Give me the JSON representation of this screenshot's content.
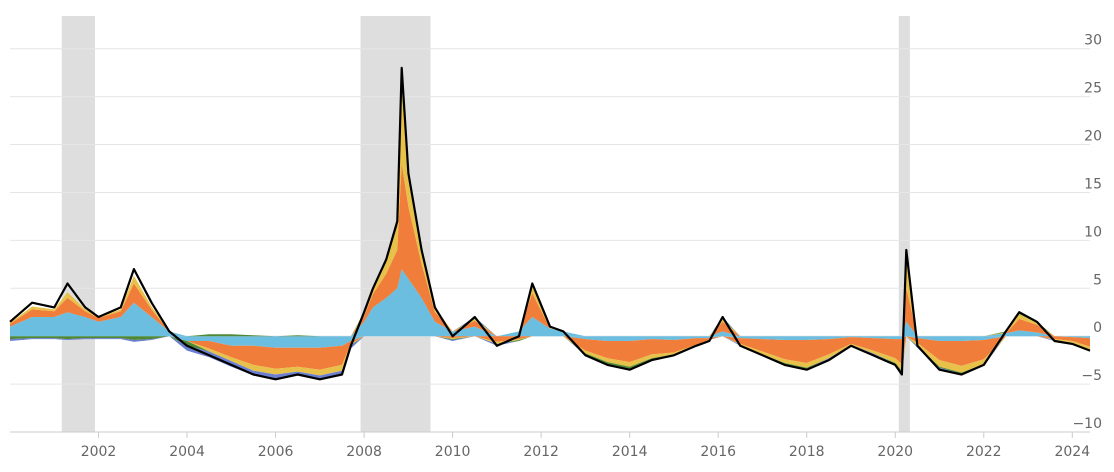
{
  "chart_data": {
    "type": "area",
    "title": "",
    "xlabel": "",
    "ylabel": "",
    "xlim": [
      2000.0,
      2024.4
    ],
    "ylim": [
      -10,
      33
    ],
    "x_ticks": [
      2002,
      2004,
      2006,
      2008,
      2010,
      2012,
      2014,
      2016,
      2018,
      2020,
      2022,
      2024
    ],
    "x_tick_labels": [
      "2002",
      "2004",
      "2006",
      "2008",
      "2010",
      "2012",
      "2014",
      "2016",
      "2018",
      "2020",
      "2022",
      "2024"
    ],
    "y_ticks": [
      30,
      25,
      20,
      15,
      10,
      5,
      0,
      -5,
      -10
    ],
    "y_tick_labels": [
      "30",
      "25",
      "20",
      "15",
      "10",
      "5",
      "0",
      "−5",
      "−10"
    ],
    "y_axis_position": "right",
    "grid": "horizontal",
    "legend": "none",
    "shaded_periods": [
      {
        "start": 2001.17,
        "end": 2001.92
      },
      {
        "start": 2007.92,
        "end": 2009.5
      },
      {
        "start": 2020.08,
        "end": 2020.33
      }
    ],
    "x": [
      2000.0,
      2000.5,
      2001.0,
      2001.3,
      2001.7,
      2002.0,
      2002.5,
      2002.8,
      2003.2,
      2003.6,
      2004.0,
      2004.5,
      2005.0,
      2005.5,
      2006.0,
      2006.5,
      2007.0,
      2007.5,
      2007.7,
      2008.0,
      2008.2,
      2008.5,
      2008.75,
      2008.85,
      2009.0,
      2009.3,
      2009.6,
      2010.0,
      2010.5,
      2011.0,
      2011.5,
      2011.8,
      2012.2,
      2012.5,
      2013.0,
      2013.5,
      2014.0,
      2014.5,
      2015.0,
      2015.5,
      2015.8,
      2016.1,
      2016.5,
      2017.0,
      2017.5,
      2018.0,
      2018.5,
      2019.0,
      2019.5,
      2020.0,
      2020.15,
      2020.25,
      2020.5,
      2021.0,
      2021.5,
      2022.0,
      2022.5,
      2022.8,
      2023.2,
      2023.6,
      2024.0,
      2024.4
    ],
    "total_index": [
      1.5,
      3.5,
      3.0,
      5.5,
      3.0,
      2.0,
      3.0,
      7.0,
      3.5,
      0.5,
      -1.0,
      -2.0,
      -3.0,
      -4.0,
      -4.5,
      -4.0,
      -4.5,
      -4.0,
      -1.0,
      2.5,
      5.0,
      8.0,
      12.0,
      28.0,
      17.0,
      9.0,
      3.0,
      0.0,
      2.0,
      -1.0,
      0.0,
      5.5,
      1.0,
      0.5,
      -2.0,
      -3.0,
      -3.5,
      -2.5,
      -2.0,
      -1.0,
      -0.5,
      2.0,
      -1.0,
      -2.0,
      -3.0,
      -3.5,
      -2.5,
      -1.0,
      -2.0,
      -3.0,
      -4.0,
      9.0,
      -1.0,
      -3.5,
      -4.0,
      -3.0,
      0.5,
      2.5,
      1.5,
      -0.5,
      -0.8,
      -1.5
    ],
    "series": [
      {
        "color": "#6cbee0",
        "values": [
          1.0,
          2.0,
          2.0,
          2.5,
          2.0,
          1.5,
          2.0,
          3.5,
          2.0,
          0.5,
          -0.5,
          -0.5,
          -1.0,
          -1.0,
          -1.2,
          -1.2,
          -1.2,
          -1.0,
          -0.5,
          1.5,
          3.0,
          4.0,
          5.0,
          7.0,
          6.0,
          4.0,
          1.5,
          0.5,
          1.0,
          0.0,
          0.5,
          2.0,
          0.8,
          0.5,
          -0.3,
          -0.5,
          -0.5,
          -0.3,
          -0.4,
          -0.2,
          -0.2,
          0.5,
          -0.2,
          -0.3,
          -0.4,
          -0.4,
          -0.3,
          -0.1,
          -0.2,
          -0.3,
          -0.3,
          1.5,
          -0.2,
          -0.5,
          -0.5,
          -0.4,
          0.3,
          0.6,
          0.4,
          0.0,
          -0.1,
          -0.2
        ]
      },
      {
        "color": "#f07e3a",
        "values": [
          0.3,
          0.8,
          0.6,
          1.5,
          0.6,
          0.4,
          0.6,
          2.0,
          0.8,
          0.0,
          0.0,
          -0.8,
          -1.2,
          -2.0,
          -2.2,
          -2.0,
          -2.3,
          -2.0,
          -0.3,
          0.6,
          1.4,
          2.5,
          4.0,
          11.0,
          7.5,
          3.5,
          1.0,
          -0.2,
          0.6,
          -0.6,
          -0.3,
          2.5,
          0.0,
          0.0,
          -1.2,
          -1.8,
          -2.2,
          -1.6,
          -1.3,
          -0.7,
          -0.2,
          1.0,
          -0.6,
          -1.3,
          -2.0,
          -2.4,
          -1.6,
          -0.7,
          -1.3,
          -2.0,
          -2.6,
          3.5,
          -0.5,
          -2.0,
          -2.6,
          -2.0,
          0.0,
          1.2,
          0.8,
          -0.3,
          -0.4,
          -0.9
        ]
      },
      {
        "color": "#e8c14a",
        "values": [
          0.1,
          0.3,
          0.2,
          0.6,
          0.2,
          0.1,
          0.2,
          0.8,
          0.3,
          0.0,
          0.0,
          -0.3,
          -0.4,
          -0.6,
          -0.6,
          -0.5,
          -0.6,
          -0.6,
          -0.1,
          0.3,
          0.6,
          1.2,
          2.5,
          8.0,
          3.0,
          1.5,
          0.5,
          -0.1,
          0.2,
          -0.2,
          -0.1,
          0.8,
          0.1,
          0.0,
          -0.3,
          -0.4,
          -0.5,
          -0.4,
          -0.2,
          -0.1,
          0.0,
          0.3,
          -0.1,
          -0.3,
          -0.4,
          -0.5,
          -0.4,
          -0.1,
          -0.3,
          -0.5,
          -0.7,
          3.0,
          -0.3,
          -0.7,
          -0.7,
          -0.5,
          0.1,
          0.5,
          0.2,
          -0.1,
          -0.2,
          -0.3
        ]
      },
      {
        "color": "#4e8a36",
        "values": [
          -0.3,
          -0.2,
          -0.2,
          -0.3,
          -0.2,
          -0.2,
          -0.2,
          -0.4,
          -0.3,
          0.0,
          -0.5,
          0.2,
          0.2,
          0.1,
          0.0,
          0.1,
          0.0,
          0.0,
          -0.1,
          0.1,
          0.0,
          0.2,
          0.3,
          1.5,
          0.3,
          0.0,
          0.0,
          -0.1,
          0.1,
          0.0,
          -0.1,
          0.2,
          0.1,
          0.0,
          -0.1,
          -0.2,
          -0.2,
          -0.1,
          0.0,
          0.0,
          0.0,
          0.1,
          0.0,
          0.0,
          -0.1,
          -0.1,
          0.0,
          0.0,
          0.0,
          -0.1,
          -0.2,
          0.7,
          -0.1,
          -0.1,
          -0.1,
          -0.1,
          0.1,
          0.1,
          0.1,
          0.0,
          0.0,
          -0.1
        ]
      },
      {
        "color": "#6a7fd0",
        "values": [
          -0.2,
          -0.1,
          -0.1,
          -0.1,
          -0.1,
          -0.1,
          -0.1,
          -0.2,
          -0.1,
          0.0,
          -0.5,
          -0.6,
          -0.6,
          -0.5,
          -0.5,
          -0.4,
          -0.4,
          -0.4,
          -0.3,
          0.0,
          0.0,
          0.1,
          0.2,
          0.5,
          0.2,
          0.0,
          0.0,
          -0.1,
          0.1,
          -0.2,
          0.0,
          0.0,
          0.0,
          0.0,
          -0.1,
          -0.1,
          -0.1,
          -0.1,
          -0.1,
          0.0,
          0.0,
          0.1,
          -0.1,
          -0.1,
          -0.1,
          -0.1,
          -0.2,
          -0.1,
          -0.2,
          -0.1,
          -0.2,
          0.3,
          -0.1,
          -0.2,
          -0.1,
          -0.1,
          0.0,
          0.1,
          0.0,
          -0.1,
          -0.1,
          -0.1
        ]
      }
    ],
    "total_line_color": "#000000",
    "recession_color": "#dedede",
    "grid_color": "#e6e6e6",
    "axis_color": "#cccccc"
  }
}
